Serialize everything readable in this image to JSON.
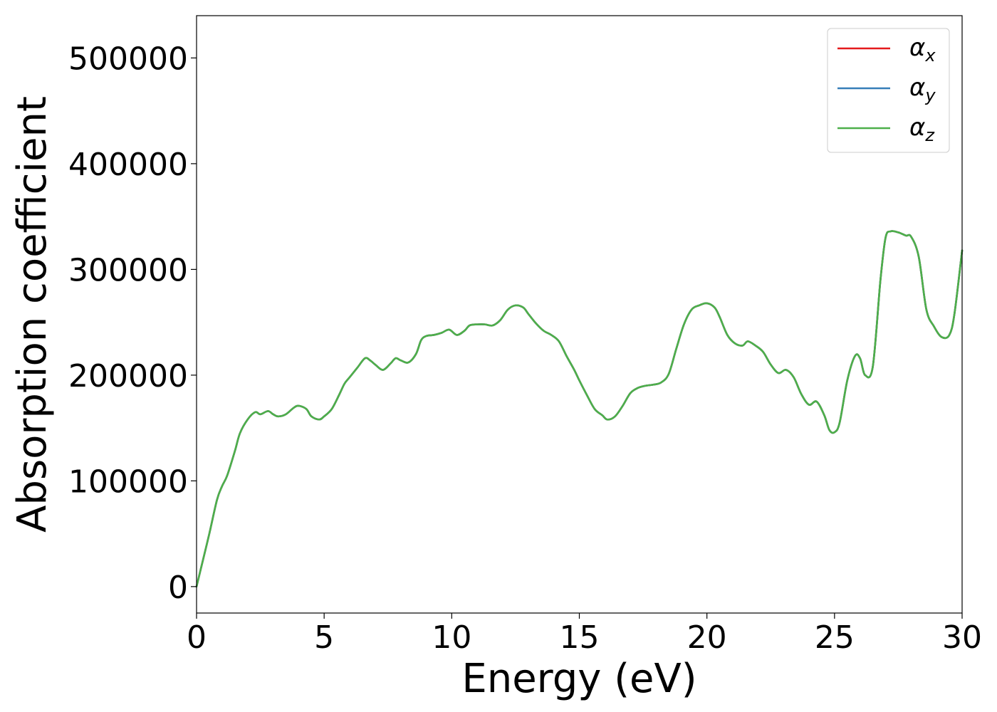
{
  "chart_data": {
    "type": "line",
    "title": "",
    "xlabel": "Energy (eV)",
    "ylabel": "Absorption coefficient",
    "xlim": [
      0,
      30
    ],
    "ylim": [
      -25000,
      540000
    ],
    "x_ticks": [
      0,
      5,
      10,
      15,
      20,
      25,
      30
    ],
    "x_tick_labels": [
      "0",
      "5",
      "10",
      "15",
      "20",
      "25",
      "30"
    ],
    "y_ticks": [
      0,
      100000,
      200000,
      300000,
      400000,
      500000
    ],
    "y_tick_labels": [
      "0",
      "100000",
      "200000",
      "300000",
      "400000",
      "500000"
    ],
    "grid": false,
    "legend_position": "top-right",
    "x": [
      0,
      0.2,
      0.5,
      0.8,
      1.0,
      1.2,
      1.5,
      1.7,
      2.0,
      2.3,
      2.5,
      2.8,
      3.0,
      3.2,
      3.5,
      3.8,
      4.0,
      4.3,
      4.5,
      4.8,
      5.0,
      5.3,
      5.6,
      5.8,
      6.0,
      6.3,
      6.6,
      6.8,
      7.0,
      7.3,
      7.6,
      7.8,
      8.0,
      8.3,
      8.6,
      8.8,
      9.0,
      9.3,
      9.6,
      9.9,
      10.2,
      10.5,
      10.7,
      11.0,
      11.3,
      11.6,
      11.9,
      12.2,
      12.5,
      12.8,
      13.0,
      13.3,
      13.6,
      13.9,
      14.2,
      14.5,
      14.8,
      15.0,
      15.3,
      15.6,
      15.9,
      16.1,
      16.4,
      16.7,
      17.0,
      17.3,
      17.6,
      17.9,
      18.2,
      18.5,
      18.8,
      19.1,
      19.4,
      19.7,
      20.0,
      20.3,
      20.5,
      20.8,
      21.1,
      21.4,
      21.6,
      21.9,
      22.2,
      22.5,
      22.8,
      23.1,
      23.4,
      23.7,
      24.0,
      24.3,
      24.6,
      24.8,
      25.0,
      25.2,
      25.5,
      25.8,
      26.0,
      26.2,
      26.5,
      26.8,
      27.0,
      27.2,
      27.5,
      27.8,
      28.0,
      28.3,
      28.6,
      28.9,
      29.2,
      29.5,
      29.7,
      30.0
    ],
    "series": [
      {
        "name": "α_x",
        "color": "#e41a1c",
        "values": [
          0,
          20000,
          50000,
          82000,
          95000,
          105000,
          128000,
          145000,
          158000,
          165000,
          163000,
          166000,
          163000,
          161000,
          163000,
          169000,
          171000,
          168000,
          161000,
          158000,
          161000,
          168000,
          182000,
          192000,
          198000,
          207000,
          216000,
          214000,
          210000,
          205000,
          211000,
          216000,
          214000,
          212000,
          220000,
          233000,
          237000,
          238000,
          240000,
          243000,
          238000,
          242000,
          247000,
          248000,
          248000,
          247000,
          252000,
          262000,
          266000,
          264000,
          258000,
          249000,
          242000,
          238000,
          232000,
          218000,
          205000,
          195000,
          181000,
          168000,
          162000,
          158000,
          161000,
          171000,
          183000,
          188000,
          190000,
          191000,
          193000,
          201000,
          225000,
          248000,
          262000,
          266000,
          268000,
          264000,
          255000,
          238000,
          230000,
          228000,
          232000,
          228000,
          222000,
          210000,
          202000,
          205000,
          198000,
          182000,
          172000,
          175000,
          162000,
          148000,
          146000,
          155000,
          195000,
          218000,
          216000,
          200000,
          208000,
          290000,
          330000,
          336000,
          335000,
          332000,
          331000,
          312000,
          262000,
          246000,
          236000,
          238000,
          258000,
          318000
        ]
      },
      {
        "name": "α_y",
        "color": "#377eb8",
        "values": [
          0,
          20000,
          50000,
          82000,
          95000,
          105000,
          128000,
          145000,
          158000,
          165000,
          163000,
          166000,
          163000,
          161000,
          163000,
          169000,
          171000,
          168000,
          161000,
          158000,
          161000,
          168000,
          182000,
          192000,
          198000,
          207000,
          216000,
          214000,
          210000,
          205000,
          211000,
          216000,
          214000,
          212000,
          220000,
          233000,
          237000,
          238000,
          240000,
          243000,
          238000,
          242000,
          247000,
          248000,
          248000,
          247000,
          252000,
          262000,
          266000,
          264000,
          258000,
          249000,
          242000,
          238000,
          232000,
          218000,
          205000,
          195000,
          181000,
          168000,
          162000,
          158000,
          161000,
          171000,
          183000,
          188000,
          190000,
          191000,
          193000,
          201000,
          225000,
          248000,
          262000,
          266000,
          268000,
          264000,
          255000,
          238000,
          230000,
          228000,
          232000,
          228000,
          222000,
          210000,
          202000,
          205000,
          198000,
          182000,
          172000,
          175000,
          162000,
          148000,
          146000,
          155000,
          195000,
          218000,
          216000,
          200000,
          208000,
          290000,
          330000,
          336000,
          335000,
          332000,
          331000,
          312000,
          262000,
          246000,
          236000,
          238000,
          258000,
          318000
        ]
      },
      {
        "name": "α_z",
        "color": "#4daf4a",
        "values": [
          0,
          20000,
          50000,
          82000,
          95000,
          105000,
          128000,
          145000,
          158000,
          165000,
          163000,
          166000,
          163000,
          161000,
          163000,
          169000,
          171000,
          168000,
          161000,
          158000,
          161000,
          168000,
          182000,
          192000,
          198000,
          207000,
          216000,
          214000,
          210000,
          205000,
          211000,
          216000,
          214000,
          212000,
          220000,
          233000,
          237000,
          238000,
          240000,
          243000,
          238000,
          242000,
          247000,
          248000,
          248000,
          247000,
          252000,
          262000,
          266000,
          264000,
          258000,
          249000,
          242000,
          238000,
          232000,
          218000,
          205000,
          195000,
          181000,
          168000,
          162000,
          158000,
          161000,
          171000,
          183000,
          188000,
          190000,
          191000,
          193000,
          201000,
          225000,
          248000,
          262000,
          266000,
          268000,
          264000,
          255000,
          238000,
          230000,
          228000,
          232000,
          228000,
          222000,
          210000,
          202000,
          205000,
          198000,
          182000,
          172000,
          175000,
          162000,
          148000,
          146000,
          155000,
          195000,
          218000,
          216000,
          200000,
          208000,
          290000,
          330000,
          336000,
          335000,
          332000,
          331000,
          312000,
          262000,
          246000,
          236000,
          238000,
          258000,
          318000
        ]
      }
    ],
    "legend": [
      {
        "symbol": "α",
        "subscript": "x",
        "color": "#e41a1c"
      },
      {
        "symbol": "α",
        "subscript": "y",
        "color": "#377eb8"
      },
      {
        "symbol": "α",
        "subscript": "z",
        "color": "#4daf4a"
      }
    ]
  }
}
